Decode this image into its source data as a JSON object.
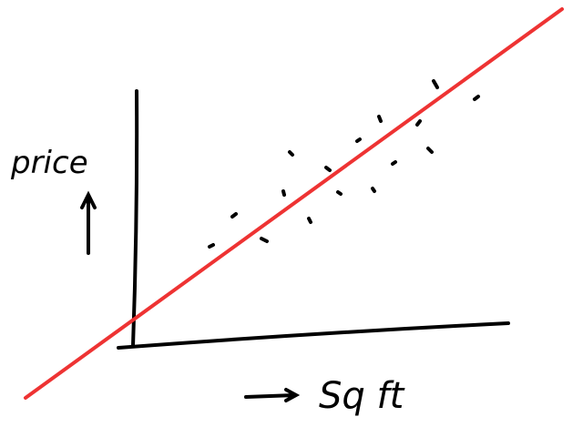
{
  "y_axis": {
    "label": "price"
  },
  "x_axis": {
    "label": "Sq ft"
  }
}
